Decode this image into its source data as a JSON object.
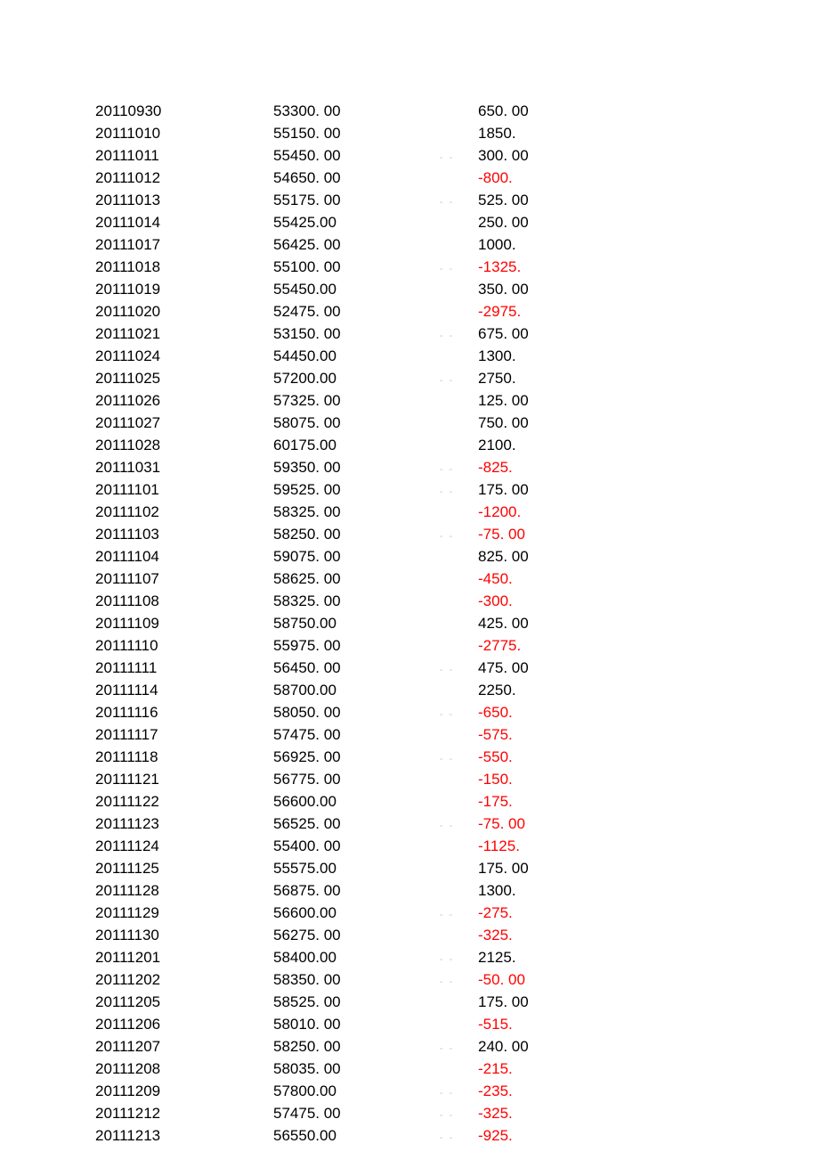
{
  "colors": {
    "text": "#000000",
    "negative": "#ff0000",
    "separator": "#c8c8d0",
    "background": "#ffffff"
  },
  "typography": {
    "font_family": "Arial",
    "font_size_pt": 13
  },
  "rows": [
    {
      "date": "20110930",
      "value": "53300. 00",
      "sep": "",
      "delta": "650. 00",
      "neg": false
    },
    {
      "date": "20111010",
      "value": "55150. 00",
      "sep": "",
      "delta": "1850.",
      "neg": false
    },
    {
      "date": "20111011",
      "value": "55450. 00",
      "sep": "- -",
      "delta": "300. 00",
      "neg": false
    },
    {
      "date": "20111012",
      "value": "54650. 00",
      "sep": "",
      "delta": "-800.",
      "neg": true
    },
    {
      "date": "20111013",
      "value": "55175. 00",
      "sep": "- -",
      "delta": "525. 00",
      "neg": false
    },
    {
      "date": "20111014",
      "value": "55425.00",
      "sep": "",
      "delta": "250. 00",
      "neg": false
    },
    {
      "date": "20111017",
      "value": "56425. 00",
      "sep": "",
      "delta": "1000.",
      "neg": false
    },
    {
      "date": "20111018",
      "value": "55100. 00",
      "sep": "- -",
      "delta": "-1325.",
      "neg": true
    },
    {
      "date": "20111019",
      "value": "55450.00",
      "sep": "",
      "delta": "350. 00",
      "neg": false
    },
    {
      "date": "20111020",
      "value": "52475. 00",
      "sep": "",
      "delta": "-2975.",
      "neg": true
    },
    {
      "date": "20111021",
      "value": "53150. 00",
      "sep": "- -",
      "delta": "675. 00",
      "neg": false
    },
    {
      "date": "20111024",
      "value": "54450.00",
      "sep": "",
      "delta": "1300.",
      "neg": false
    },
    {
      "date": "20111025",
      "value": "57200.00",
      "sep": "- -",
      "delta": "2750.",
      "neg": false
    },
    {
      "date": "20111026",
      "value": "57325. 00",
      "sep": "",
      "delta": "125. 00",
      "neg": false
    },
    {
      "date": "20111027",
      "value": "58075. 00",
      "sep": "",
      "delta": "750. 00",
      "neg": false
    },
    {
      "date": "20111028",
      "value": "60175.00",
      "sep": "",
      "delta": "2100.",
      "neg": false
    },
    {
      "date": "20111031",
      "value": "59350. 00",
      "sep": "- -",
      "delta": "-825.",
      "neg": true
    },
    {
      "date": "20111101",
      "value": "59525. 00",
      "sep": "- -",
      "delta": "175. 00",
      "neg": false
    },
    {
      "date": "20111102",
      "value": "58325. 00",
      "sep": "",
      "delta": "-1200.",
      "neg": true
    },
    {
      "date": "20111103",
      "value": "58250. 00",
      "sep": "- -",
      "delta": "-75. 00",
      "neg": true
    },
    {
      "date": "20111104",
      "value": "59075. 00",
      "sep": "",
      "delta": "825. 00",
      "neg": false
    },
    {
      "date": "20111107",
      "value": "58625. 00",
      "sep": "",
      "delta": "-450.",
      "neg": true
    },
    {
      "date": "20111108",
      "value": "58325. 00",
      "sep": "",
      "delta": "-300.",
      "neg": true
    },
    {
      "date": "20111109",
      "value": "58750.00",
      "sep": "",
      "delta": "425. 00",
      "neg": false
    },
    {
      "date": "20111110",
      "value": "55975. 00",
      "sep": "",
      "delta": "-2775.",
      "neg": true
    },
    {
      "date": "20111111",
      "value": "56450. 00",
      "sep": "- -",
      "delta": "475. 00",
      "neg": false
    },
    {
      "date": "20111114",
      "value": "58700.00",
      "sep": "",
      "delta": "2250.",
      "neg": false
    },
    {
      "date": "20111116",
      "value": "58050. 00",
      "sep": "- -",
      "delta": "-650.",
      "neg": true
    },
    {
      "date": "20111117",
      "value": "57475. 00",
      "sep": "",
      "delta": "-575.",
      "neg": true
    },
    {
      "date": "20111118",
      "value": "56925. 00",
      "sep": "- -",
      "delta": "-550.",
      "neg": true
    },
    {
      "date": "20111121",
      "value": "56775. 00",
      "sep": "",
      "delta": "-150.",
      "neg": true
    },
    {
      "date": "20111122",
      "value": "56600.00",
      "sep": "",
      "delta": "-175.",
      "neg": true
    },
    {
      "date": "20111123",
      "value": "56525. 00",
      "sep": "- -",
      "delta": "-75. 00",
      "neg": true
    },
    {
      "date": "20111124",
      "value": "55400. 00",
      "sep": "",
      "delta": "-1125.",
      "neg": true
    },
    {
      "date": "20111125",
      "value": "55575.00",
      "sep": "",
      "delta": "175. 00",
      "neg": false
    },
    {
      "date": "20111128",
      "value": "56875. 00",
      "sep": "",
      "delta": "1300.",
      "neg": false
    },
    {
      "date": "20111129",
      "value": "56600.00",
      "sep": "- -",
      "delta": "-275.",
      "neg": true
    },
    {
      "date": "20111130",
      "value": "56275. 00",
      "sep": "",
      "delta": "-325.",
      "neg": true
    },
    {
      "date": "20111201",
      "value": "58400.00",
      "sep": "- -",
      "delta": "2125.",
      "neg": false
    },
    {
      "date": "20111202",
      "value": "58350. 00",
      "sep": "- -",
      "delta": "-50. 00",
      "neg": true
    },
    {
      "date": "20111205",
      "value": "58525. 00",
      "sep": "",
      "delta": "175. 00",
      "neg": false
    },
    {
      "date": "20111206",
      "value": "58010. 00",
      "sep": "",
      "delta": "-515.",
      "neg": true
    },
    {
      "date": "20111207",
      "value": "58250. 00",
      "sep": "- -",
      "delta": "240. 00",
      "neg": false
    },
    {
      "date": "20111208",
      "value": "58035. 00",
      "sep": "",
      "delta": "-215.",
      "neg": true
    },
    {
      "date": "20111209",
      "value": "57800.00",
      "sep": "- -",
      "delta": "-235.",
      "neg": true
    },
    {
      "date": "20111212",
      "value": "57475. 00",
      "sep": "- -",
      "delta": "-325.",
      "neg": true
    },
    {
      "date": "20111213",
      "value": "56550.00",
      "sep": "- -",
      "delta": "-925.",
      "neg": true
    }
  ]
}
